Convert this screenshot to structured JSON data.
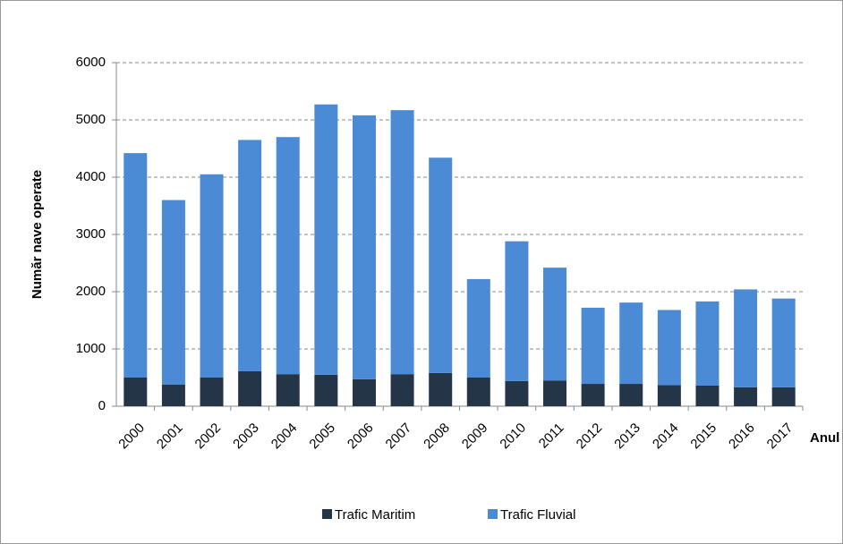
{
  "chart_data": {
    "type": "stacked_bar",
    "x_label": "Anul",
    "y_label": "Număr nave operate",
    "categories": [
      "2000",
      "2001",
      "2002",
      "2003",
      "2004",
      "2005",
      "2006",
      "2007",
      "2008",
      "2009",
      "2010",
      "2011",
      "2012",
      "2013",
      "2014",
      "2015",
      "2016",
      "2017"
    ],
    "series": [
      {
        "name": "Trafic Maritim",
        "color": "#253548",
        "values": [
          500,
          380,
          500,
          610,
          560,
          550,
          470,
          560,
          580,
          500,
          440,
          450,
          390,
          390,
          370,
          360,
          330,
          330
        ]
      },
      {
        "name": "Trafic Fluvial",
        "color": "#4b8bd6",
        "values": [
          3920,
          3220,
          3550,
          4040,
          4140,
          4720,
          4610,
          4610,
          3760,
          1720,
          2440,
          1970,
          1330,
          1420,
          1310,
          1470,
          1710,
          1550
        ]
      }
    ],
    "ylim": [
      0,
      6000
    ],
    "yticks": [
      0,
      1000,
      2000,
      3000,
      4000,
      5000,
      6000
    ],
    "grid": true,
    "legend": "bottom"
  }
}
